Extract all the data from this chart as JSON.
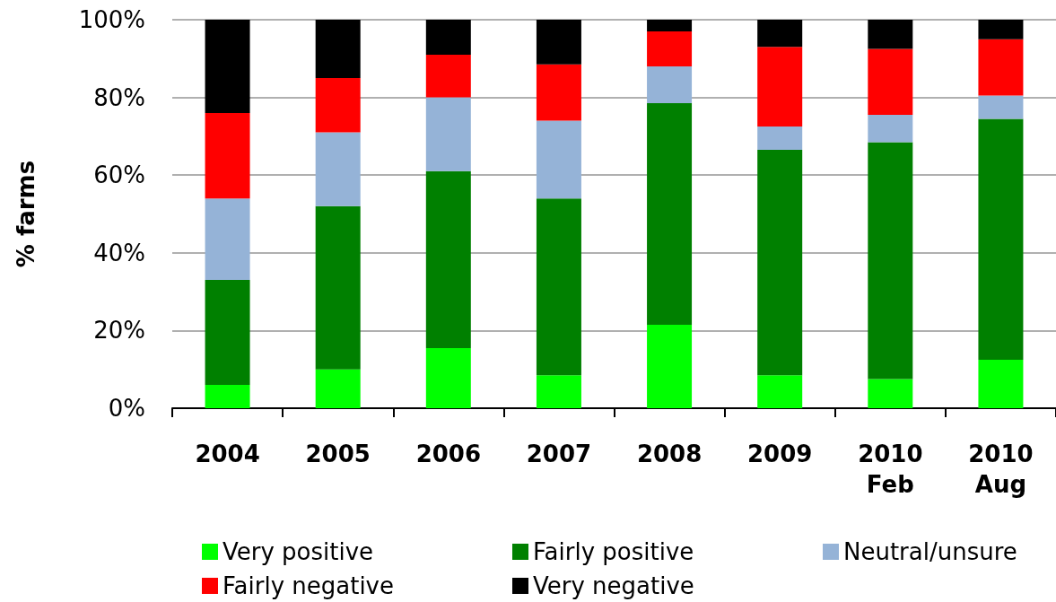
{
  "chart_data": {
    "type": "bar",
    "stacked": true,
    "ylabel": "% farms",
    "categories": [
      "2004",
      "2005",
      "2006",
      "2007",
      "2008",
      "2009",
      "2010\nFeb",
      "2010\nAug"
    ],
    "series": [
      {
        "name": "Very positive",
        "color": "#00ff00",
        "values": [
          6,
          10,
          15.5,
          8.5,
          21.5,
          8.5,
          7.5,
          12.5
        ]
      },
      {
        "name": "Fairly positive",
        "color": "#008000",
        "values": [
          27,
          42,
          45.5,
          45.5,
          57,
          58,
          61,
          62
        ]
      },
      {
        "name": "Neutral/unsure",
        "color": "#95b3d7",
        "values": [
          21,
          19,
          19,
          20,
          9.5,
          6,
          7,
          6
        ]
      },
      {
        "name": "Fairly negative",
        "color": "#ff0000",
        "values": [
          22,
          14,
          11,
          14.5,
          9,
          20.5,
          17,
          14.5
        ]
      },
      {
        "name": "Very negative",
        "color": "#000000",
        "values": [
          24,
          15,
          9,
          11.5,
          3,
          7,
          7.5,
          5
        ]
      }
    ],
    "ylim": [
      0,
      100
    ],
    "yticks": [
      {
        "value": 0,
        "label": "0%"
      },
      {
        "value": 20,
        "label": "20%"
      },
      {
        "value": 40,
        "label": "40%"
      },
      {
        "value": 60,
        "label": "60%"
      },
      {
        "value": 80,
        "label": "80%"
      },
      {
        "value": 100,
        "label": "100%"
      }
    ],
    "grid": "y",
    "legend": "bottom"
  }
}
